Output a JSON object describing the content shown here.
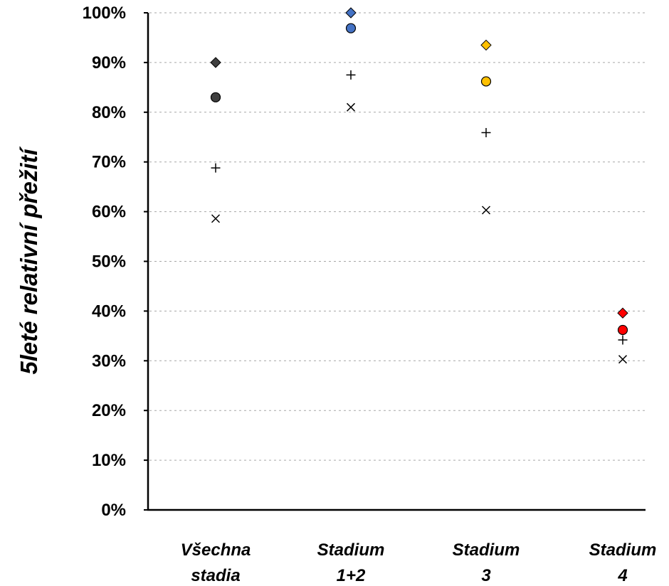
{
  "chart_data": {
    "type": "scatter",
    "title": "",
    "xlabel": "",
    "ylabel": "5leté relativní přežití",
    "ylim": [
      0,
      100
    ],
    "yticks": [
      "0%",
      "10%",
      "20%",
      "30%",
      "40%",
      "50%",
      "60%",
      "70%",
      "80%",
      "90%",
      "100%"
    ],
    "grid": true,
    "legend": "none",
    "categories": [
      {
        "line1": "Všechna",
        "line2": "stadia"
      },
      {
        "line1": "Stadium",
        "line2": "1+2"
      },
      {
        "line1": "Stadium",
        "line2": "3"
      },
      {
        "line1": "Stadium",
        "line2": "4"
      }
    ],
    "series": [
      {
        "marker": "diamond",
        "values": [
          90,
          100,
          93.5,
          39.6
        ],
        "colors": [
          "#404040",
          "#4472c4",
          "#ffc000",
          "#ff0000"
        ]
      },
      {
        "marker": "circle",
        "values": [
          83,
          96.9,
          86.2,
          36.2
        ],
        "colors": [
          "#404040",
          "#4472c4",
          "#ffc000",
          "#ff0000"
        ]
      },
      {
        "marker": "plus",
        "values": [
          68.8,
          87.5,
          75.9,
          34.2
        ],
        "colors": [
          "#000000",
          "#000000",
          "#000000",
          "#000000"
        ]
      },
      {
        "marker": "x",
        "values": [
          58.6,
          81,
          60.3,
          30.3
        ],
        "colors": [
          "#000000",
          "#000000",
          "#000000",
          "#000000"
        ]
      }
    ]
  }
}
